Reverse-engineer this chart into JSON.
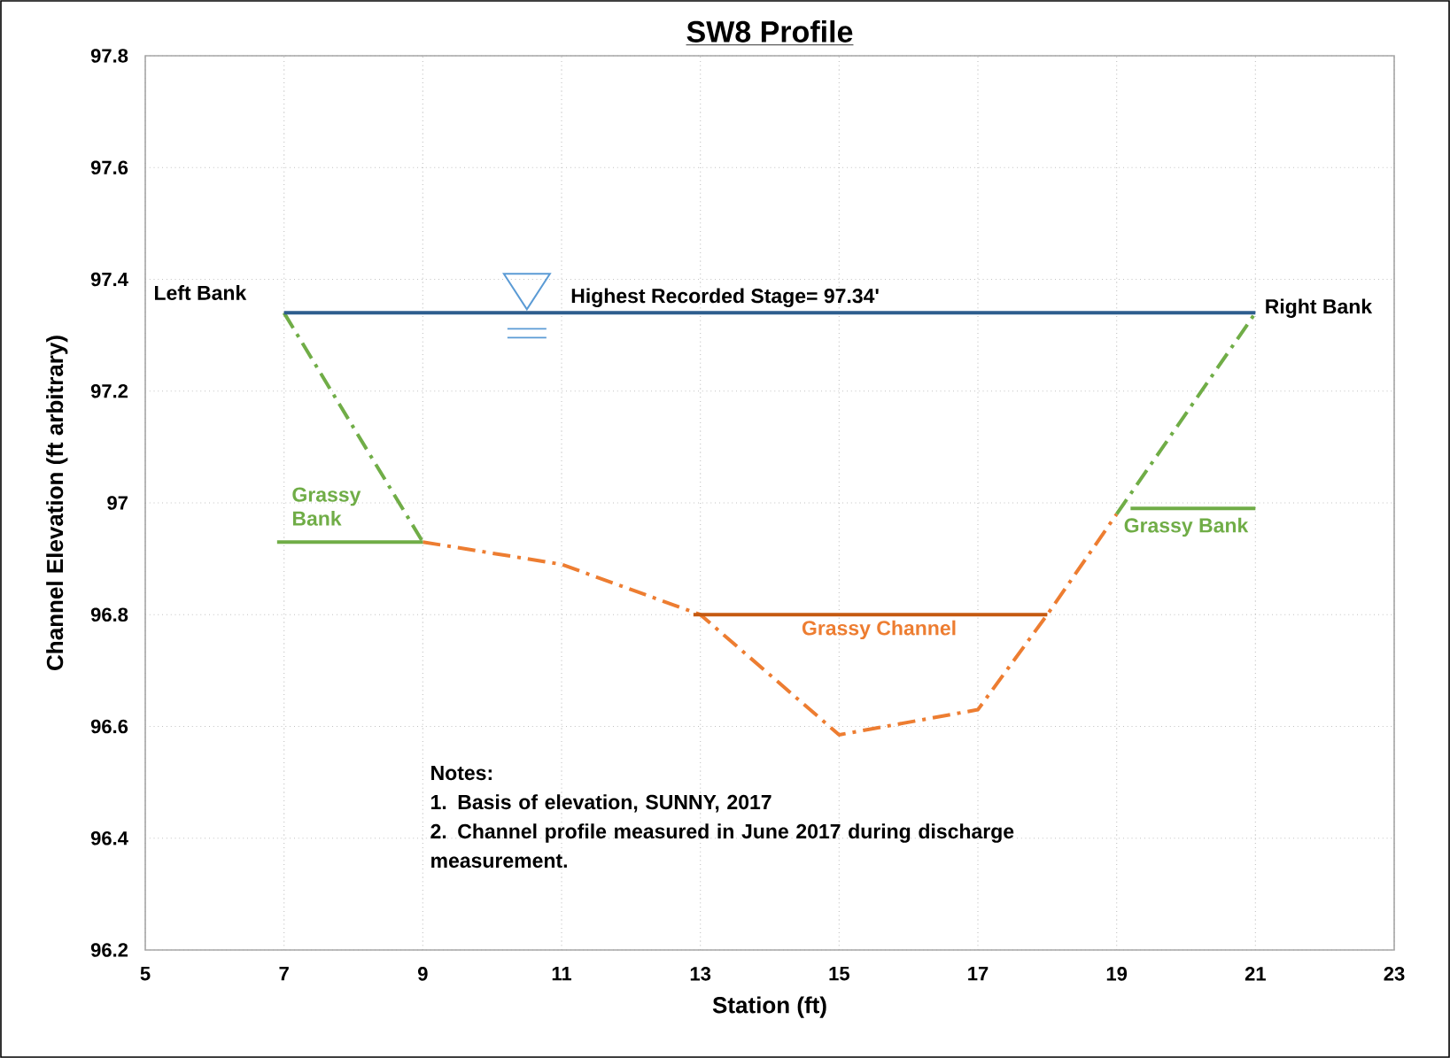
{
  "chart_data": {
    "type": "line",
    "title": "SW8 Profile",
    "xlabel": "Station (ft)",
    "ylabel": "Channel Elevation (ft arbitrary)",
    "xlim": [
      5,
      23
    ],
    "xticks": [
      5,
      7,
      9,
      11,
      13,
      15,
      17,
      19,
      21,
      23
    ],
    "ylim": [
      96.2,
      97.8
    ],
    "yticks": [
      96.2,
      96.4,
      96.6,
      96.8,
      97,
      97.2,
      97.4,
      97.6,
      97.8
    ],
    "grid": true,
    "line_style": "dashed",
    "series": [
      {
        "color": "#70ad47",
        "x": [
          7,
          9
        ],
        "values": [
          97.34,
          96.93
        ]
      },
      {
        "color": "#ed7d31",
        "x": [
          9,
          11,
          13,
          15,
          17,
          18,
          19
        ],
        "values": [
          96.93,
          96.89,
          96.8,
          96.585,
          96.63,
          96.8,
          96.98
        ]
      },
      {
        "color": "#70ad47",
        "x": [
          19,
          21
        ],
        "values": [
          96.98,
          97.34
        ]
      },
      {
        "color": "#2e5e8e",
        "line_style": "solid",
        "x": [
          7,
          21
        ],
        "values": [
          97.34,
          97.34
        ]
      },
      {
        "color": "#70ad47",
        "line_style": "solid",
        "x": [
          6.9,
          9
        ],
        "values": [
          96.93,
          96.93
        ]
      },
      {
        "color": "#70ad47",
        "line_style": "solid",
        "x": [
          19.2,
          21
        ],
        "values": [
          96.99,
          96.99
        ]
      },
      {
        "color": "#c55a11",
        "line_style": "solid",
        "x": [
          12.9,
          18
        ],
        "values": [
          96.8,
          96.8
        ]
      }
    ],
    "annotations": [
      {
        "text": "Left Bank",
        "x": 7,
        "y": 97.34
      },
      {
        "text": "Right Bank",
        "x": 21,
        "y": 97.34
      },
      {
        "text": "Highest Recorded Stage= 97.34'",
        "x": 11.1,
        "y": 97.34
      },
      {
        "text": "Grassy Bank",
        "x": 8,
        "y": 96.93
      },
      {
        "text": "Grassy Bank",
        "x": 20,
        "y": 96.99
      },
      {
        "text": "Grassy Channel",
        "x": 15.5,
        "y": 96.8
      },
      "Notes:",
      "1. Basis of elevation, SUNNY, 2017",
      "2. Channel profile measured in June 2017 during discharge measurement."
    ]
  }
}
